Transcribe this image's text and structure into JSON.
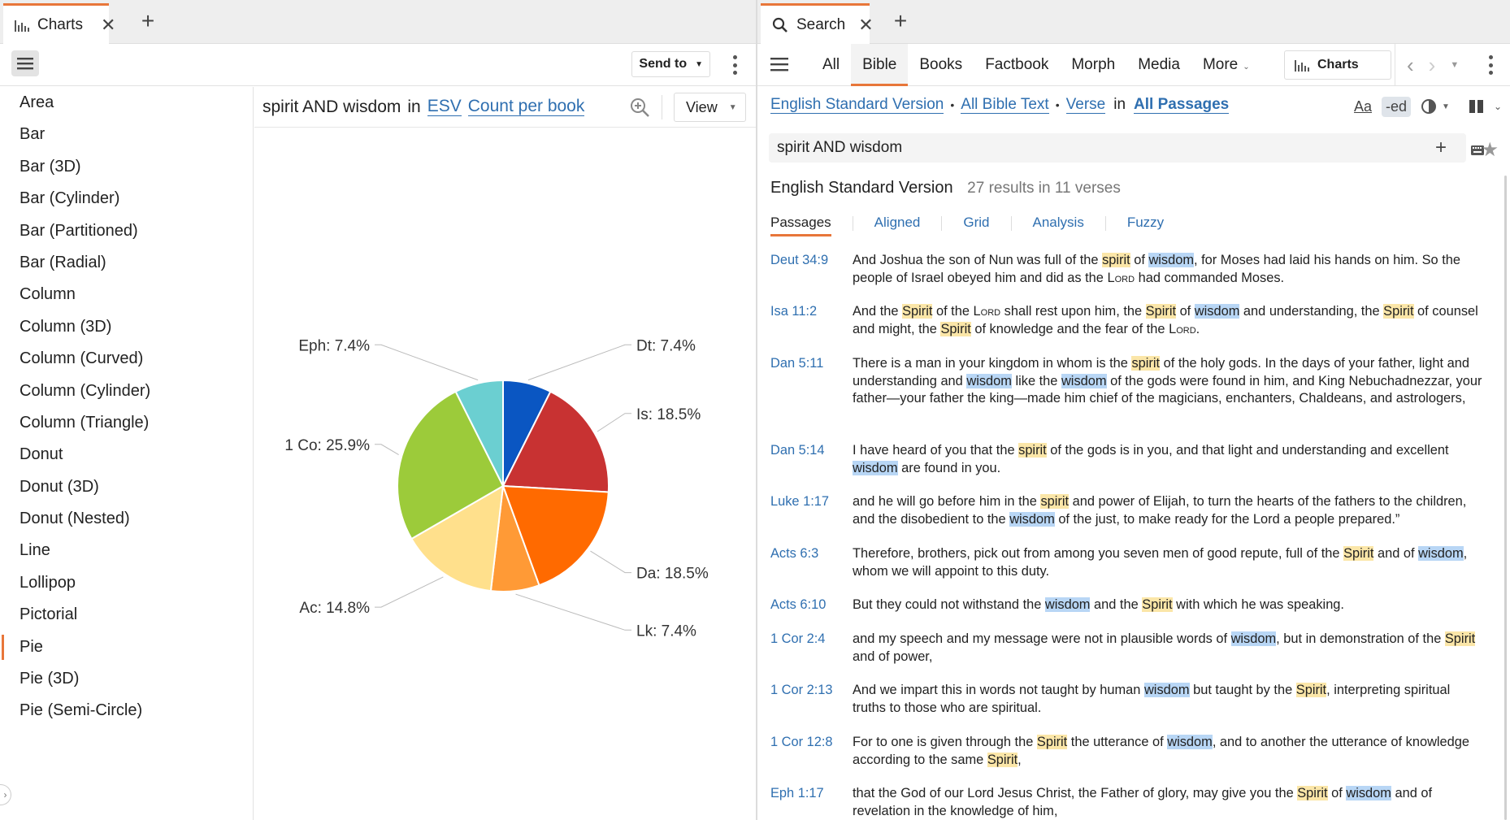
{
  "left_pane": {
    "tab": {
      "label": "Charts"
    },
    "toolbar": {
      "send_to": "Send to"
    },
    "chart_types": [
      "Area",
      "Bar",
      "Bar (3D)",
      "Bar (Cylinder)",
      "Bar (Partitioned)",
      "Bar (Radial)",
      "Column",
      "Column (3D)",
      "Column (Curved)",
      "Column (Cylinder)",
      "Column (Triangle)",
      "Donut",
      "Donut (3D)",
      "Donut (Nested)",
      "Line",
      "Lollipop",
      "Pictorial",
      "Pie",
      "Pie (3D)",
      "Pie (Semi-Circle)"
    ],
    "selected_type": "Pie",
    "chart_header": {
      "query": "spirit AND wisdom",
      "in": "in",
      "version": "ESV",
      "mode": "Count per book"
    },
    "view_button": "View"
  },
  "chart_data": {
    "type": "pie",
    "title": "",
    "slices": [
      {
        "label": "Dt",
        "percent": 7.4,
        "color": "#0a56c2"
      },
      {
        "label": "Is",
        "percent": 18.5,
        "color": "#c83232"
      },
      {
        "label": "Da",
        "percent": 18.5,
        "color": "#ff6a00"
      },
      {
        "label": "Lk",
        "percent": 7.4,
        "color": "#ff9a36"
      },
      {
        "label": "Ac",
        "percent": 14.8,
        "color": "#ffe08c"
      },
      {
        "label": "1 Co",
        "percent": 25.9,
        "color": "#9ccb3a"
      },
      {
        "label": "Eph",
        "percent": 7.4,
        "color": "#6bcfd1"
      }
    ]
  },
  "right_pane": {
    "tab": {
      "label": "Search"
    },
    "nav_tabs": [
      {
        "label": "All"
      },
      {
        "label": "Bible",
        "active": true
      },
      {
        "label": "Books"
      },
      {
        "label": "Factbook"
      },
      {
        "label": "Morph"
      },
      {
        "label": "Media"
      },
      {
        "label": "More",
        "dropdown": true
      }
    ],
    "charts_button": "Charts",
    "scope": {
      "version": "English Standard Version",
      "text": "All Bible Text",
      "unit": "Verse",
      "in": "in",
      "range": "All Passages"
    },
    "tools": {
      "font": "Aa",
      "ed": "-ed"
    },
    "search_value": "spirit AND wisdom",
    "results": {
      "version": "English Standard Version",
      "count": "27 results in 11 verses"
    },
    "view_tabs": [
      "Passages",
      "Aligned",
      "Grid",
      "Analysis",
      "Fuzzy"
    ],
    "passages": [
      {
        "ref": "Deut 34:9",
        "html": "And Joshua the son of Nun was full of the <span class=\"hl-s\">spirit</span> of <span class=\"hl-w\">wisdom</span>, for Moses had laid his hands on him. So the people of Israel obeyed him and did as the L<span class=\"sc\">ord</span> had commanded Moses."
      },
      {
        "ref": "Isa 11:2",
        "html": "And the <span class=\"hl-s\">Spirit</span> of the L<span class=\"sc\">ord</span> shall rest upon him, the <span class=\"hl-s\">Spirit</span> of <span class=\"hl-w\">wisdom</span> and understanding, the <span class=\"hl-s\">Spirit</span> of counsel and might, the <span class=\"hl-s\">Spirit</span> of knowledge and the fear of the L<span class=\"sc\">ord</span>."
      },
      {
        "ref": "Dan 5:11",
        "html": "There is a man in your kingdom in whom is the <span class=\"hl-s\">spirit</span> of the holy gods. In the days of your father, light and understanding and <span class=\"hl-w\">wisdom</span> like the <span class=\"hl-w\">wisdom</span> of the gods were found in him, and King Nebuchadnezzar, your father—your father the king—made him chief of the magicians, enchanters, Chaldeans, and astrologers,"
      },
      {
        "ref": "Dan 5:14",
        "html": "I have heard of you that the <span class=\"hl-s\">spirit</span> of the gods is in you, and that light and understanding and excellent <span class=\"hl-w\">wisdom</span> are found in you."
      },
      {
        "ref": "Luke 1:17",
        "html": "and he will go before him in the <span class=\"hl-s\">spirit</span> and power of Elijah, to turn the hearts of the fathers to the children, and the disobedient to the <span class=\"hl-w\">wisdom</span> of the just, to make ready for the Lord a people prepared.”"
      },
      {
        "ref": "Acts 6:3",
        "html": "Therefore, brothers, pick out from among you seven men of good repute, full of the <span class=\"hl-s\">Spirit</span> and of <span class=\"hl-w\">wisdom</span>, whom we will appoint to this duty."
      },
      {
        "ref": "Acts 6:10",
        "html": "But they could not withstand the <span class=\"hl-w\">wisdom</span> and the <span class=\"hl-s\">Spirit</span> with which he was speaking."
      },
      {
        "ref": "1 Cor 2:4",
        "html": "and my speech and my message were not in plausible words of <span class=\"hl-w\">wisdom</span>, but in demonstration of the <span class=\"hl-s\">Spirit</span> and of power,"
      },
      {
        "ref": "1 Cor 2:13",
        "html": "And we impart this in words not taught by human <span class=\"hl-w\">wisdom</span> but taught by the <span class=\"hl-s\">Spirit</span>, interpreting spiritual truths to those who are spiritual."
      },
      {
        "ref": "1 Cor 12:8",
        "html": "For to one is given through the <span class=\"hl-s\">Spirit</span> the utterance of <span class=\"hl-w\">wisdom</span>, and to another the utterance of knowledge according to the same <span class=\"hl-s\">Spirit</span>,"
      },
      {
        "ref": "Eph 1:17",
        "html": "that the God of our Lord Jesus Christ, the Father of glory, may give you the <span class=\"hl-s\">Spirit</span> of <span class=\"hl-w\">wisdom</span> and of revelation in the knowledge of him,"
      }
    ]
  }
}
